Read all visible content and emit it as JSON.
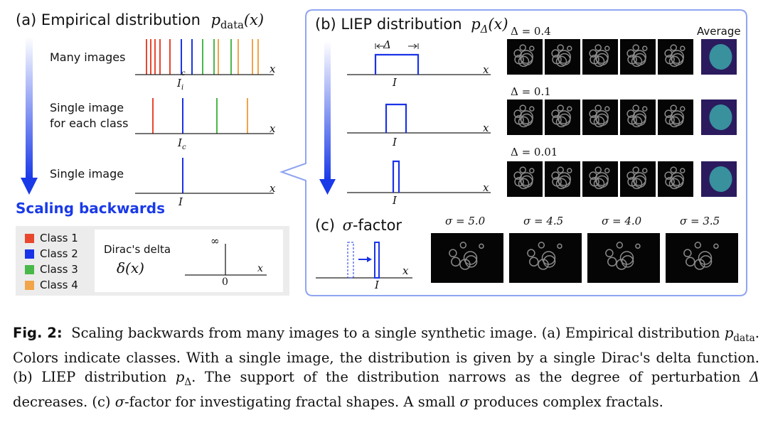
{
  "panel_a": {
    "title_prefix": "(a) Empirical distribution",
    "title_math": "p",
    "title_sub": "data",
    "title_arg": "(x)",
    "rows": [
      {
        "label_lines": [
          "Many images"
        ],
        "axis_var": "x",
        "tick": "I",
        "tick_sub": "i",
        "tick_sup": "c"
      },
      {
        "label_lines": [
          "Single image",
          "for each class"
        ],
        "axis_var": "x",
        "tick": "I",
        "tick_sub": "c",
        "tick_sup": ""
      },
      {
        "label_lines": [
          "Single image"
        ],
        "axis_var": "x",
        "tick": "I",
        "tick_sub": "",
        "tick_sup": ""
      }
    ],
    "arrow_label": "Scaling backwards",
    "legend": [
      {
        "label": "Class 1",
        "color": "#e8472e"
      },
      {
        "label": "Class 2",
        "color": "#1a33e8"
      },
      {
        "label": "Class 3",
        "color": "#49b84a"
      },
      {
        "label": "Class 4",
        "color": "#f2a44a"
      }
    ],
    "dirac": {
      "label": "Dirac's delta",
      "symbol": "δ(x)",
      "infinity": "∞",
      "zero": "0",
      "axis_var": "x"
    }
  },
  "panel_b": {
    "title_prefix": "(b) LIEP distribution",
    "title_math": "p",
    "title_sub": "Δ",
    "title_arg": "(x)",
    "delta_marker": "Δ",
    "average_label": "Average",
    "rows": [
      {
        "delta_label": "Δ = 0.4",
        "axis_var": "x",
        "tick": "I",
        "support_fraction": 0.4
      },
      {
        "delta_label": "Δ = 0.1",
        "axis_var": "x",
        "tick": "I",
        "support_fraction": 0.1
      },
      {
        "delta_label": "Δ = 0.01",
        "axis_var": "x",
        "tick": "I",
        "support_fraction": 0.01
      }
    ]
  },
  "panel_c": {
    "title_prefix": "(c)",
    "title_math": "σ",
    "title_suffix": "-factor",
    "axis_var": "x",
    "tick": "I",
    "sigma_labels": [
      "σ = 5.0",
      "σ = 4.5",
      "σ = 4.0",
      "σ = 3.5"
    ]
  },
  "caption": {
    "fig_label": "Fig. 2:",
    "s1": "Scaling backwards from many images to a single synthetic image. (a) Empirical distribution ",
    "m1": "p",
    "m1_sub": "data",
    "s2": ". Colors indicate classes. With a single image, the distribution is given by a single Dirac's delta function. (b) LIEP distribution ",
    "m2": "p",
    "m2_sub": "Δ",
    "s3": ". The support of the distribution narrows as the degree of perturbation ",
    "m3": "Δ",
    "s4": " decreases. (c) ",
    "m4": "σ",
    "s5": "-factor for investigating fractal shapes. A small ",
    "m5": "σ",
    "s6": " produces complex fractals."
  }
}
